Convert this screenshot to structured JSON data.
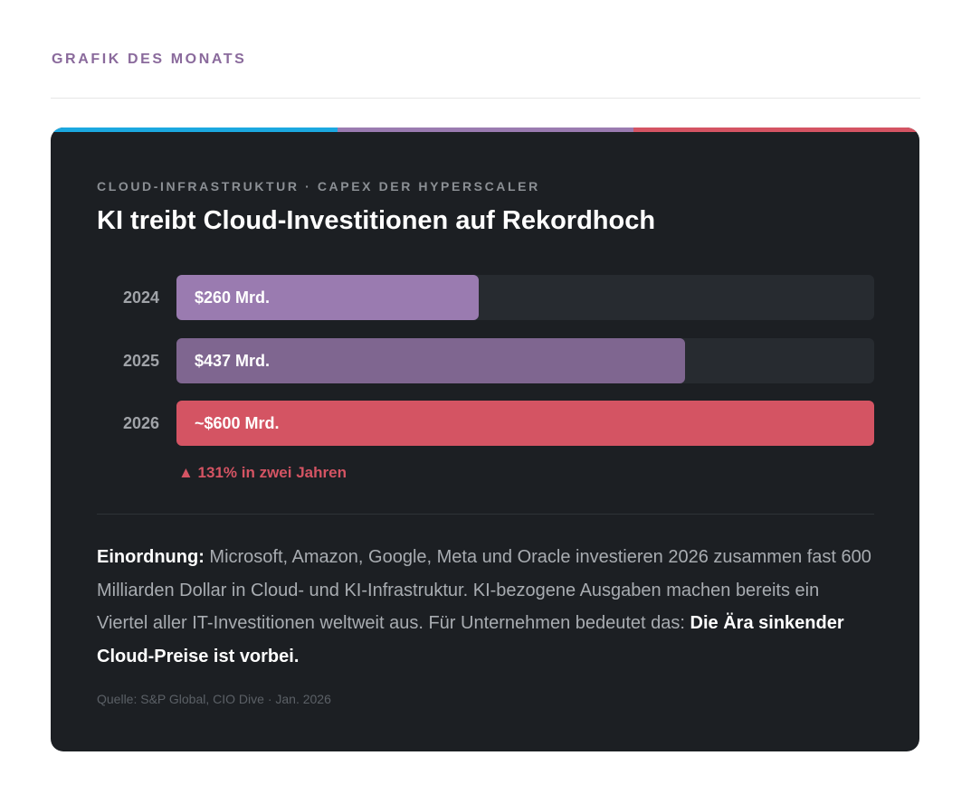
{
  "header": {
    "title": "GRAFIK DES MONATS"
  },
  "chart_data": {
    "type": "bar",
    "orientation": "horizontal",
    "subtitle": "CLOUD-INFRASTRUKTUR · CAPEX DER HYPERSCALER",
    "title": "KI treibt Cloud-Investitionen auf Rekordhoch",
    "categories": [
      "2024",
      "2025",
      "2026"
    ],
    "values": [
      260,
      437,
      600
    ],
    "value_labels": [
      "$260 Mrd.",
      "$437 Mrd.",
      "~$600 Mrd."
    ],
    "colors": [
      "#9a7bb0",
      "#7f6690",
      "#d45463"
    ],
    "annotation": "▲ 131% in zwei Jahren"
  },
  "commentary": {
    "label": "Einordnung:",
    "text": "Microsoft, Amazon, Google, Meta und Oracle investieren 2026 zusammen fast 600 Milliarden Dollar in Cloud- und KI-Infrastruktur. KI-bezogene Ausgaben machen bereits ein Viertel aller IT-Investitionen weltweit aus. Für Unternehmen bedeutet das:",
    "emphasis": "Die Ära sinkender Cloud-Preise ist vorbei."
  },
  "source": "Quelle: S&P Global, CIO Dive · Jan. 2026"
}
